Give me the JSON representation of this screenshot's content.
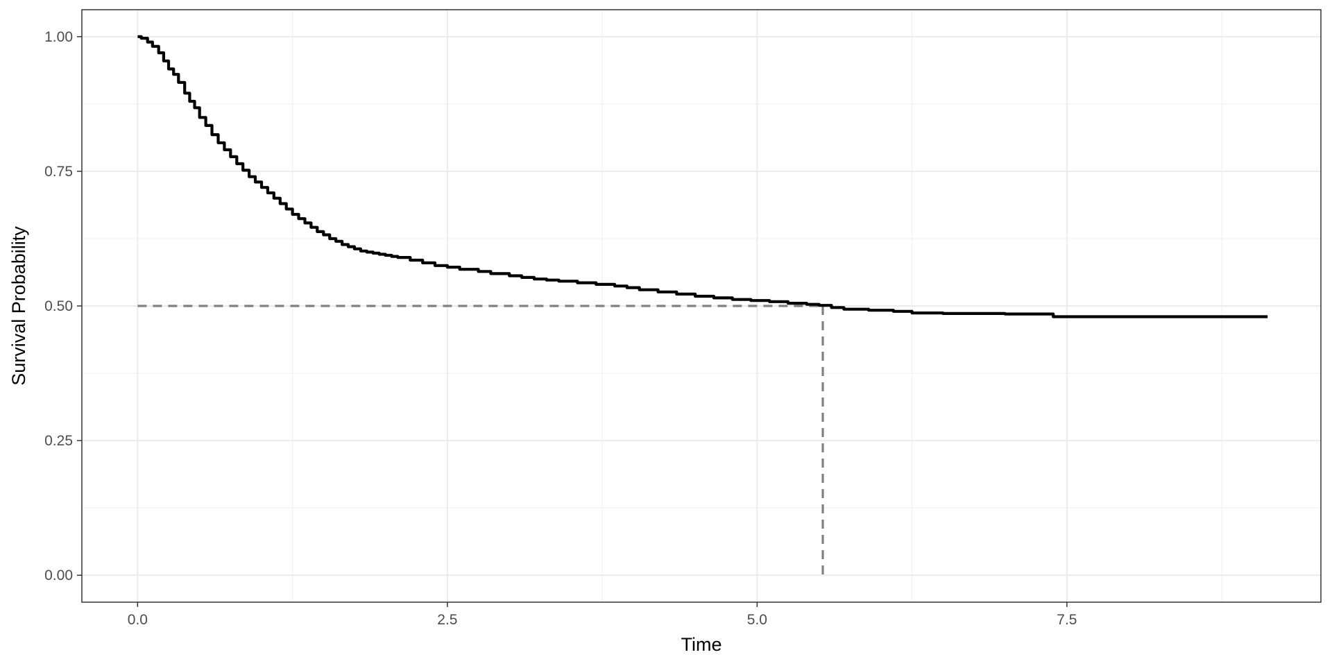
{
  "chart_data": {
    "type": "line",
    "title": "",
    "xlabel": "Time",
    "ylabel": "Survival Probability",
    "xlim": [
      -0.45,
      9.55
    ],
    "ylim": [
      -0.05,
      1.05
    ],
    "x_ticks": [
      0.0,
      2.5,
      5.0,
      7.5
    ],
    "x_tick_labels": [
      "0.0",
      "2.5",
      "5.0",
      "7.5"
    ],
    "y_ticks": [
      0.0,
      0.25,
      0.5,
      0.75,
      1.0
    ],
    "y_tick_labels": [
      "0.00",
      "0.25",
      "0.50",
      "0.75",
      "1.00"
    ],
    "x_minor_grid": [
      1.25,
      3.75,
      6.25,
      8.75
    ],
    "y_minor_grid": [
      0.125,
      0.375,
      0.625,
      0.875
    ],
    "grid": true,
    "theme": "bw",
    "series": [
      {
        "color": "#000000",
        "step": true,
        "x": [
          0.0,
          0.03,
          0.08,
          0.12,
          0.17,
          0.21,
          0.25,
          0.29,
          0.33,
          0.38,
          0.42,
          0.46,
          0.5,
          0.55,
          0.6,
          0.65,
          0.7,
          0.75,
          0.8,
          0.85,
          0.9,
          0.95,
          1.0,
          1.05,
          1.1,
          1.15,
          1.2,
          1.25,
          1.3,
          1.35,
          1.4,
          1.45,
          1.5,
          1.55,
          1.6,
          1.65,
          1.7,
          1.75,
          1.8,
          1.85,
          1.9,
          1.95,
          2.0,
          2.05,
          2.1,
          2.2,
          2.3,
          2.4,
          2.5,
          2.6,
          2.75,
          2.85,
          3.0,
          3.1,
          3.2,
          3.3,
          3.4,
          3.55,
          3.7,
          3.85,
          3.95,
          4.05,
          4.2,
          4.35,
          4.5,
          4.65,
          4.8,
          4.95,
          5.1,
          5.25,
          5.4,
          5.5,
          5.6,
          5.7,
          5.9,
          6.1,
          6.25,
          6.5,
          7.0,
          7.39,
          7.5,
          8.5,
          9.12
        ],
        "y": [
          1.0,
          0.997,
          0.99,
          0.982,
          0.97,
          0.955,
          0.94,
          0.93,
          0.915,
          0.895,
          0.88,
          0.868,
          0.85,
          0.835,
          0.818,
          0.803,
          0.79,
          0.777,
          0.764,
          0.752,
          0.74,
          0.73,
          0.72,
          0.71,
          0.7,
          0.69,
          0.68,
          0.67,
          0.662,
          0.654,
          0.646,
          0.638,
          0.632,
          0.625,
          0.62,
          0.614,
          0.61,
          0.606,
          0.602,
          0.6,
          0.598,
          0.596,
          0.594,
          0.592,
          0.59,
          0.585,
          0.58,
          0.575,
          0.572,
          0.568,
          0.564,
          0.56,
          0.556,
          0.553,
          0.55,
          0.548,
          0.546,
          0.543,
          0.54,
          0.537,
          0.534,
          0.53,
          0.526,
          0.522,
          0.518,
          0.515,
          0.512,
          0.51,
          0.508,
          0.505,
          0.503,
          0.501,
          0.497,
          0.494,
          0.492,
          0.49,
          0.487,
          0.486,
          0.485,
          0.48,
          0.48,
          0.48,
          0.48
        ]
      }
    ],
    "median_reference": {
      "y": 0.5,
      "x": 5.53,
      "color": "#808080",
      "style": "dashed"
    }
  }
}
